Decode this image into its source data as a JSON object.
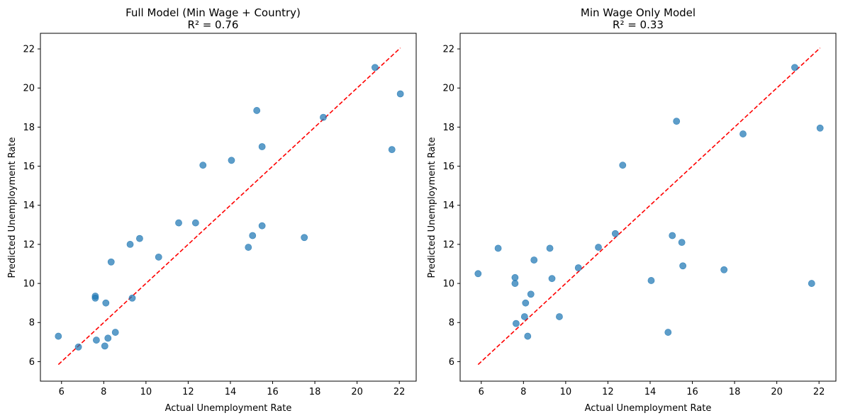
{
  "chart_data": [
    {
      "type": "scatter",
      "title": "Full Model (Min Wage + Country)",
      "subtitle": "R² = 0.76",
      "xlabel": "Actual Unemployment Rate",
      "ylabel": "Predicted Unemployment Rate",
      "xlim": [
        5.0,
        22.8
      ],
      "ylim": [
        5.0,
        22.8
      ],
      "xticks": [
        "6",
        "8",
        "10",
        "12",
        "14",
        "16",
        "18",
        "20",
        "22"
      ],
      "yticks": [
        "6",
        "8",
        "10",
        "12",
        "14",
        "16",
        "18",
        "20",
        "22"
      ],
      "grid": false,
      "reference_line": {
        "from": [
          5.85,
          5.85
        ],
        "to": [
          22.05,
          22.05
        ],
        "color": "#ff0000",
        "style": "dashed"
      },
      "point_color": "#1f77b4",
      "x": [
        5.85,
        6.8,
        7.6,
        7.6,
        7.65,
        8.05,
        8.1,
        8.2,
        8.35,
        8.55,
        9.25,
        9.35,
        9.7,
        10.6,
        11.55,
        12.35,
        12.7,
        14.05,
        14.85,
        15.05,
        15.25,
        15.5,
        15.5,
        17.5,
        18.4,
        20.85,
        21.65,
        22.05
      ],
      "y": [
        7.3,
        6.75,
        9.35,
        9.25,
        7.1,
        6.8,
        9.0,
        7.2,
        11.1,
        7.5,
        12.0,
        9.25,
        12.3,
        11.35,
        13.1,
        13.1,
        16.05,
        16.3,
        11.85,
        12.45,
        18.85,
        17.0,
        12.95,
        12.35,
        18.5,
        21.05,
        16.85,
        19.7
      ]
    },
    {
      "type": "scatter",
      "title": "Min Wage Only Model",
      "subtitle": "R² = 0.33",
      "xlabel": "Actual Unemployment Rate",
      "ylabel": "Predicted Unemployment Rate",
      "xlim": [
        5.0,
        22.8
      ],
      "ylim": [
        5.0,
        22.8
      ],
      "xticks": [
        "6",
        "8",
        "10",
        "12",
        "14",
        "16",
        "18",
        "20",
        "22"
      ],
      "yticks": [
        "6",
        "8",
        "10",
        "12",
        "14",
        "16",
        "18",
        "20",
        "22"
      ],
      "grid": false,
      "reference_line": {
        "from": [
          5.85,
          5.85
        ],
        "to": [
          22.05,
          22.05
        ],
        "color": "#ff0000",
        "style": "dashed"
      },
      "point_color": "#1f77b4",
      "x": [
        5.85,
        6.8,
        7.6,
        7.6,
        7.65,
        8.05,
        8.1,
        8.2,
        8.35,
        8.5,
        9.25,
        9.35,
        9.7,
        10.6,
        11.55,
        12.35,
        12.7,
        14.05,
        14.85,
        15.05,
        15.25,
        15.5,
        15.55,
        17.5,
        18.4,
        20.85,
        21.65,
        22.05
      ],
      "y": [
        10.5,
        11.8,
        10.3,
        10.0,
        7.95,
        8.3,
        9.0,
        7.3,
        9.45,
        11.2,
        11.8,
        10.25,
        8.3,
        10.8,
        11.85,
        12.55,
        16.05,
        10.15,
        7.5,
        12.45,
        18.3,
        12.1,
        10.9,
        10.7,
        17.65,
        21.05,
        10.0,
        17.95
      ]
    }
  ]
}
